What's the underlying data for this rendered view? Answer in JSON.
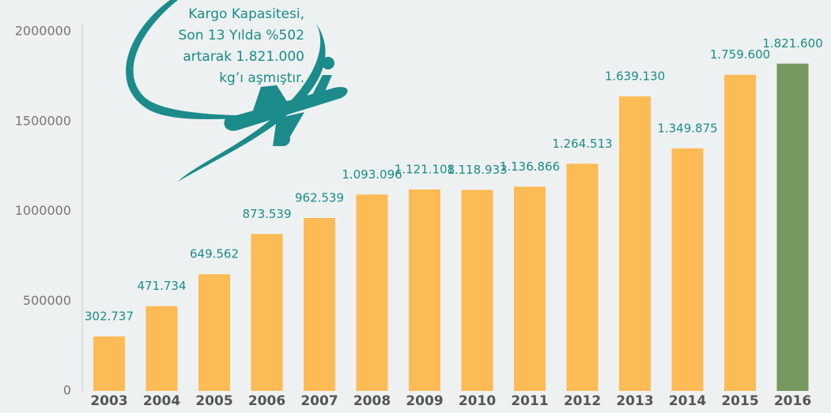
{
  "chart_data": {
    "type": "bar",
    "categories": [
      "2003",
      "2004",
      "2005",
      "2006",
      "2007",
      "2008",
      "2009",
      "2010",
      "2011",
      "2012",
      "2013",
      "2014",
      "2015",
      "2016"
    ],
    "values": [
      302737,
      471734,
      649562,
      873539,
      962539,
      1093096,
      1121108,
      1118933,
      1136866,
      1264513,
      1639130,
      1349875,
      1759600,
      1821600
    ],
    "value_labels": [
      "302.737",
      "471.734",
      "649.562",
      "873.539",
      "962.539",
      "1.093.096",
      "1.121.108",
      "1.118.933",
      "1.136.866",
      "1.264.513",
      "1.639.130",
      "1.349.875",
      "1.759.600",
      "1.821.600"
    ],
    "colors": [
      "#fdbb55",
      "#fdbb55",
      "#fdbb55",
      "#fdbb55",
      "#fdbb55",
      "#fdbb55",
      "#fdbb55",
      "#fdbb55",
      "#fdbb55",
      "#fdbb55",
      "#fdbb55",
      "#fdbb55",
      "#fdbb55",
      "#76985e"
    ],
    "label_color": "#1b8b8b",
    "ylim": [
      0,
      2000000
    ],
    "yticks": [
      0,
      500000,
      1000000,
      1500000,
      2000000
    ],
    "grid": false,
    "annotation": [
      "Kargo Kapasitesi,",
      "Son 13 Yılda %502",
      "artarak 1.821.000",
      "kg’ı aşmıştır."
    ]
  }
}
